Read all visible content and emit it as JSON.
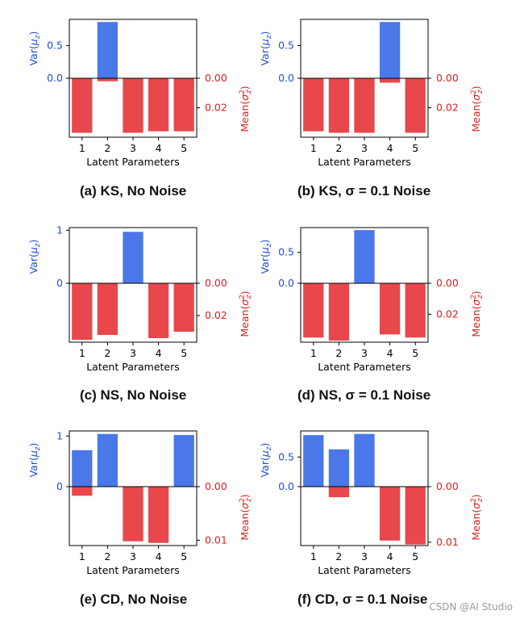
{
  "colors": {
    "var": "#4a78e8",
    "mean": "#e8474b",
    "var_text": "#1f4ed8",
    "mean_text": "#d81f1f",
    "axis": "#000000"
  },
  "xlabel": "Latent Parameters",
  "var_label": "Var(μ_z)",
  "mean_label": "Mean(σ_z^2)",
  "watermark": "CSDN @AI Studio",
  "chart_data": [
    {
      "type": "bar",
      "id": "a",
      "caption_prefix": "(a) KS,",
      "caption_noise": "No Noise",
      "categories": [
        "1",
        "2",
        "3",
        "4",
        "5"
      ],
      "series": [
        {
          "name": "Var(μ_z)",
          "values": [
            0,
            0.86,
            0,
            0,
            0
          ]
        },
        {
          "name": "Mean(σ_z^2)",
          "values": [
            0.037,
            0.002,
            0.037,
            0.036,
            0.036
          ]
        }
      ],
      "var_ylim": [
        0,
        0.9
      ],
      "var_ticks": [
        "0.0",
        "0.5"
      ],
      "var_tick_vals": [
        0,
        0.5
      ],
      "mean_ylim": [
        0,
        0.04
      ],
      "mean_ticks": [
        "0.00",
        "0.02"
      ],
      "mean_tick_vals": [
        0,
        0.02
      ]
    },
    {
      "type": "bar",
      "id": "b",
      "caption_prefix": "(b) KS,",
      "caption_noise": "σ = 0.1 Noise",
      "categories": [
        "1",
        "2",
        "3",
        "4",
        "5"
      ],
      "series": [
        {
          "name": "Var(μ_z)",
          "values": [
            0,
            0,
            0,
            0.86,
            0
          ]
        },
        {
          "name": "Mean(σ_z^2)",
          "values": [
            0.036,
            0.037,
            0.037,
            0.003,
            0.037
          ]
        }
      ],
      "var_ylim": [
        0,
        0.9
      ],
      "var_ticks": [
        "0.0",
        "0.5"
      ],
      "var_tick_vals": [
        0,
        0.5
      ],
      "mean_ylim": [
        0,
        0.04
      ],
      "mean_ticks": [
        "0.00",
        "0.02"
      ],
      "mean_tick_vals": [
        0,
        0.02
      ]
    },
    {
      "type": "bar",
      "id": "c",
      "caption_prefix": "(c) NS,",
      "caption_noise": "No Noise",
      "categories": [
        "1",
        "2",
        "3",
        "4",
        "5"
      ],
      "series": [
        {
          "name": "Var(μ_z)",
          "values": [
            0,
            0,
            0.97,
            0,
            0
          ]
        },
        {
          "name": "Mean(σ_z^2)",
          "values": [
            0.035,
            0.032,
            0,
            0.034,
            0.03
          ]
        }
      ],
      "var_ylim": [
        0,
        1.05
      ],
      "var_ticks": [
        "0",
        "1"
      ],
      "var_tick_vals": [
        0,
        1
      ],
      "mean_ylim": [
        0,
        0.0365
      ],
      "mean_ticks": [
        "0.00",
        "0.02"
      ],
      "mean_tick_vals": [
        0,
        0.02
      ]
    },
    {
      "type": "bar",
      "id": "d",
      "caption_prefix": "(d) NS,",
      "caption_noise": "σ = 0.1 Noise",
      "categories": [
        "1",
        "2",
        "3",
        "4",
        "5"
      ],
      "series": [
        {
          "name": "Var(μ_z)",
          "values": [
            0,
            0,
            0.86,
            0,
            0
          ]
        },
        {
          "name": "Mean(σ_z^2)",
          "values": [
            0.035,
            0.037,
            0,
            0.033,
            0.035
          ]
        }
      ],
      "var_ylim": [
        0,
        0.9
      ],
      "var_ticks": [
        "0.0",
        "0.5"
      ],
      "var_tick_vals": [
        0,
        0.5
      ],
      "mean_ylim": [
        0,
        0.038
      ],
      "mean_ticks": [
        "0.00",
        "0.02"
      ],
      "mean_tick_vals": [
        0,
        0.02
      ]
    },
    {
      "type": "bar",
      "id": "e",
      "caption_prefix": "(e) CD,",
      "caption_noise": "No Noise",
      "categories": [
        "1",
        "2",
        "3",
        "4",
        "5"
      ],
      "series": [
        {
          "name": "Var(μ_z)",
          "values": [
            0.72,
            1.04,
            0,
            0,
            1.02
          ]
        },
        {
          "name": "Mean(σ_z^2)",
          "values": [
            0.0017,
            0,
            0.0102,
            0.0105,
            0
          ]
        }
      ],
      "var_ylim": [
        0,
        1.1
      ],
      "var_ticks": [
        "0",
        "1"
      ],
      "var_tick_vals": [
        0,
        1
      ],
      "mean_ylim": [
        0,
        0.011
      ],
      "mean_ticks": [
        "0.00",
        "0.01"
      ],
      "mean_tick_vals": [
        0,
        0.01
      ]
    },
    {
      "type": "bar",
      "id": "f",
      "caption_prefix": "(f) CD,",
      "caption_noise": "σ = 0.1 Noise",
      "categories": [
        "1",
        "2",
        "3",
        "4",
        "5"
      ],
      "series": [
        {
          "name": "Var(μ_z)",
          "values": [
            0.87,
            0.63,
            0.89,
            0,
            0
          ]
        },
        {
          "name": "Mean(σ_z^2)",
          "values": [
            0,
            0.0019,
            0,
            0.0097,
            0.0104
          ]
        }
      ],
      "var_ylim": [
        0,
        0.94
      ],
      "var_ticks": [
        "0.0",
        "0.5"
      ],
      "var_tick_vals": [
        0,
        0.5
      ],
      "mean_ylim": [
        0,
        0.0106
      ],
      "mean_ticks": [
        "0.00",
        "0.01"
      ],
      "mean_tick_vals": [
        0,
        0.01
      ]
    }
  ]
}
